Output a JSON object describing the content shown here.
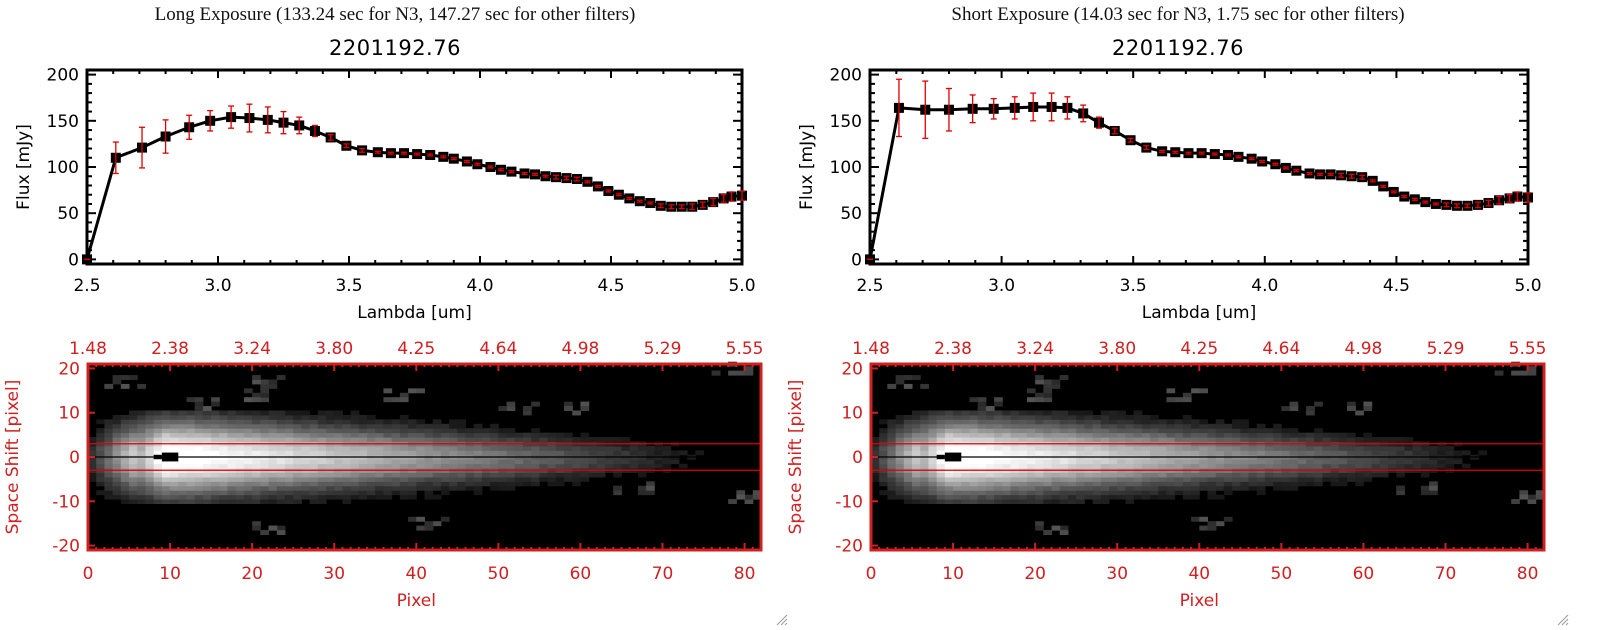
{
  "panels": [
    {
      "id": "long",
      "title": "Long Exposure (133.24 sec for N3, 147.27 sec for other filters)",
      "object_id": "2201192.76"
    },
    {
      "id": "short",
      "title": "Short Exposure (14.03 sec for N3, 1.75 sec for other filters)",
      "object_id": "2201192.76"
    }
  ],
  "chart_data": [
    {
      "type": "line",
      "panel": "long",
      "title": "2201192.76",
      "xlabel": "Lambda [um]",
      "ylabel": "Flux [mJy]",
      "xlim": [
        2.5,
        5.0
      ],
      "ylim": [
        -5,
        205
      ],
      "xticks": [
        "2.5",
        "3.0",
        "3.5",
        "4.0",
        "4.5",
        "5.0"
      ],
      "xtick_values": [
        2.5,
        3.0,
        3.5,
        4.0,
        4.5,
        5.0
      ],
      "yticks": [
        "0",
        "50",
        "100",
        "150",
        "200"
      ],
      "ytick_values": [
        0,
        50,
        100,
        150,
        200
      ],
      "grid": false,
      "series": [
        {
          "name": "flux",
          "color": "#000000",
          "errcolor": "#e00000",
          "x": [
            2.5,
            2.61,
            2.71,
            2.8,
            2.89,
            2.97,
            3.05,
            3.12,
            3.19,
            3.25,
            3.31,
            3.37,
            3.43,
            3.49,
            3.55,
            3.61,
            3.66,
            3.71,
            3.76,
            3.81,
            3.86,
            3.9,
            3.95,
            3.99,
            4.04,
            4.08,
            4.12,
            4.17,
            4.21,
            4.25,
            4.29,
            4.33,
            4.37,
            4.41,
            4.45,
            4.49,
            4.53,
            4.57,
            4.61,
            4.65,
            4.69,
            4.73,
            4.77,
            4.81,
            4.85,
            4.89,
            4.93,
            4.96,
            5.0
          ],
          "y": [
            0,
            110,
            121,
            133,
            143,
            150,
            154,
            153,
            151,
            148,
            145,
            139,
            132,
            123,
            118,
            116,
            115,
            115,
            114,
            113,
            111,
            109,
            106,
            103,
            100,
            97,
            95,
            93,
            92,
            90,
            89,
            88,
            87,
            84,
            79,
            74,
            70,
            66,
            63,
            61,
            58,
            57,
            57,
            57,
            59,
            62,
            66,
            68,
            69
          ],
          "err": [
            0,
            17,
            22,
            18,
            13,
            11,
            12,
            15,
            14,
            12,
            9,
            6,
            3,
            2,
            2,
            1,
            1,
            1,
            1,
            1,
            1,
            1,
            1,
            1,
            1,
            1,
            1,
            1,
            1,
            1,
            2,
            2,
            2,
            1,
            1,
            1,
            1,
            1,
            1,
            1,
            2,
            2,
            2,
            3,
            3,
            4,
            4,
            5,
            5
          ]
        }
      ]
    },
    {
      "type": "line",
      "panel": "short",
      "title": "2201192.76",
      "xlabel": "Lambda [um]",
      "ylabel": "Flux [mJy]",
      "xlim": [
        2.5,
        5.0
      ],
      "ylim": [
        -5,
        205
      ],
      "xticks": [
        "2.5",
        "3.0",
        "3.5",
        "4.0",
        "4.5",
        "5.0"
      ],
      "xtick_values": [
        2.5,
        3.0,
        3.5,
        4.0,
        4.5,
        5.0
      ],
      "yticks": [
        "0",
        "50",
        "100",
        "150",
        "200"
      ],
      "ytick_values": [
        0,
        50,
        100,
        150,
        200
      ],
      "grid": false,
      "series": [
        {
          "name": "flux",
          "color": "#000000",
          "errcolor": "#e00000",
          "x": [
            2.5,
            2.61,
            2.71,
            2.8,
            2.89,
            2.97,
            3.05,
            3.12,
            3.19,
            3.25,
            3.31,
            3.37,
            3.43,
            3.49,
            3.55,
            3.61,
            3.66,
            3.71,
            3.76,
            3.81,
            3.86,
            3.9,
            3.95,
            3.99,
            4.04,
            4.08,
            4.12,
            4.17,
            4.21,
            4.25,
            4.29,
            4.33,
            4.37,
            4.41,
            4.45,
            4.49,
            4.53,
            4.57,
            4.61,
            4.65,
            4.69,
            4.73,
            4.77,
            4.81,
            4.85,
            4.89,
            4.93,
            4.96,
            5.0
          ],
          "y": [
            0,
            164,
            162,
            162,
            163,
            163,
            164,
            165,
            165,
            164,
            158,
            148,
            139,
            129,
            121,
            117,
            116,
            115,
            115,
            114,
            113,
            111,
            109,
            106,
            103,
            99,
            96,
            93,
            92,
            92,
            91,
            90,
            89,
            85,
            79,
            73,
            68,
            65,
            62,
            60,
            59,
            58,
            58,
            59,
            61,
            64,
            66,
            68,
            67
          ],
          "err": [
            0,
            31,
            31,
            23,
            15,
            11,
            12,
            15,
            15,
            12,
            9,
            6,
            3,
            2,
            2,
            1,
            1,
            1,
            1,
            1,
            1,
            1,
            1,
            1,
            1,
            1,
            1,
            1,
            1,
            1,
            2,
            2,
            2,
            1,
            1,
            1,
            1,
            1,
            1,
            1,
            2,
            2,
            2,
            3,
            3,
            4,
            4,
            5,
            5
          ]
        }
      ]
    },
    {
      "type": "heatmap",
      "panel": "long",
      "xlabel": "Pixel",
      "ylabel": "Space Shift [pixel]",
      "xlim": [
        0,
        82
      ],
      "ylim": [
        -21,
        21
      ],
      "xticks": [
        "0",
        "10",
        "20",
        "30",
        "40",
        "50",
        "60",
        "70",
        "80"
      ],
      "xtick_values": [
        0,
        10,
        20,
        30,
        40,
        50,
        60,
        70,
        80
      ],
      "yticks": [
        "20",
        "10",
        "0",
        "-10",
        "-20"
      ],
      "ytick_values": [
        20,
        10,
        0,
        -10,
        -20
      ],
      "top_axis_label_values": [
        "1.48",
        "2.38",
        "3.24",
        "3.80",
        "4.25",
        "4.64",
        "4.98",
        "5.29",
        "5.55"
      ],
      "aperture_lines": [
        3,
        -3
      ],
      "center_line": 0,
      "source_peak_pixel": 10,
      "axis_color": "#d02020"
    },
    {
      "type": "heatmap",
      "panel": "short",
      "xlabel": "Pixel",
      "ylabel": "Space Shift [pixel]",
      "xlim": [
        0,
        82
      ],
      "ylim": [
        -21,
        21
      ],
      "xticks": [
        "0",
        "10",
        "20",
        "30",
        "40",
        "50",
        "60",
        "70",
        "80"
      ],
      "xtick_values": [
        0,
        10,
        20,
        30,
        40,
        50,
        60,
        70,
        80
      ],
      "yticks": [
        "20",
        "10",
        "0",
        "-10",
        "-20"
      ],
      "ytick_values": [
        20,
        10,
        0,
        -10,
        -20
      ],
      "top_axis_label_values": [
        "1.48",
        "2.38",
        "3.24",
        "3.80",
        "4.25",
        "4.64",
        "4.98",
        "5.29",
        "5.55"
      ],
      "aperture_lines": [
        3,
        -3
      ],
      "center_line": 0,
      "source_peak_pixel": 10,
      "axis_color": "#d02020"
    }
  ]
}
